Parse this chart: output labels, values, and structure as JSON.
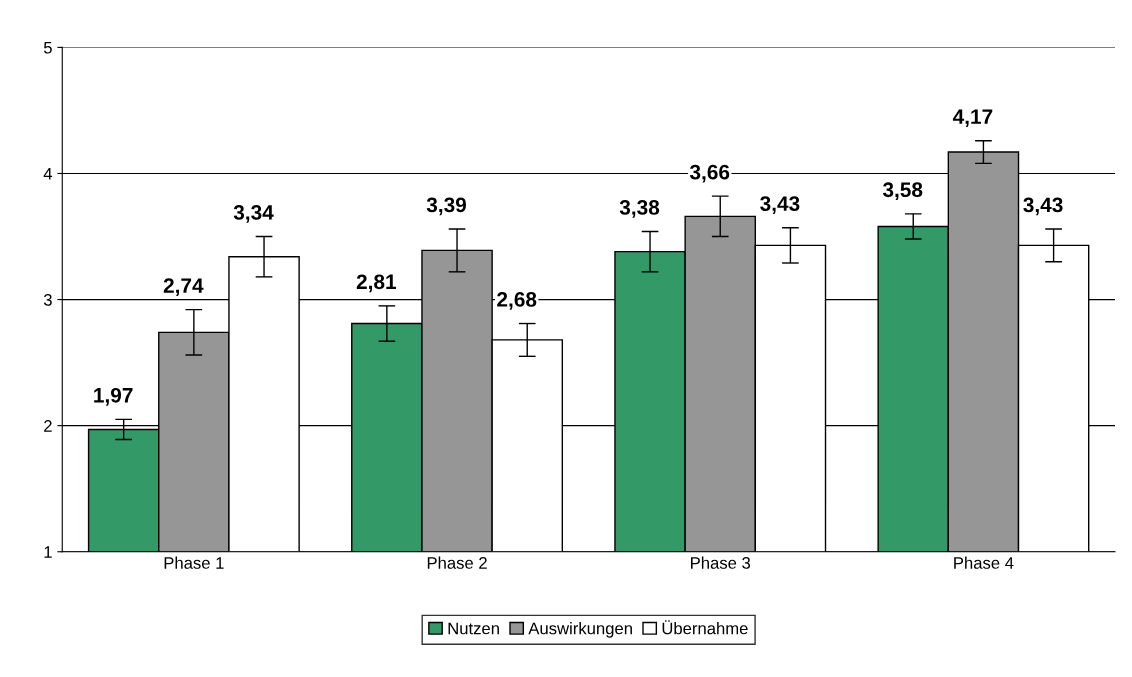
{
  "chart_data": {
    "type": "bar",
    "categories": [
      "Phase 1",
      "Phase 2",
      "Phase 3",
      "Phase 4"
    ],
    "series": [
      {
        "name": "Nutzen",
        "color": "#339966",
        "values": [
          1.97,
          2.81,
          3.38,
          3.58
        ],
        "errors": [
          0.08,
          0.14,
          0.16,
          0.1
        ],
        "value_labels": [
          "1,97",
          "2,81",
          "3,38",
          "3,58"
        ]
      },
      {
        "name": "Auswirkungen",
        "color": "#969696",
        "values": [
          2.74,
          3.39,
          3.66,
          4.17
        ],
        "errors": [
          0.18,
          0.17,
          0.16,
          0.09
        ],
        "value_labels": [
          "2,74",
          "3,39",
          "3,66",
          "4,17"
        ]
      },
      {
        "name": "Übernahme",
        "color": "#ffffff",
        "values": [
          3.34,
          2.68,
          3.43,
          3.43
        ],
        "errors": [
          0.16,
          0.13,
          0.14,
          0.13
        ],
        "value_labels": [
          "3,34",
          "2,68",
          "3,43",
          "3,43"
        ]
      }
    ],
    "ylim": [
      1,
      5
    ],
    "yticks": [
      1,
      2,
      3,
      4,
      5
    ],
    "grid": "y",
    "legend": "bottom"
  }
}
